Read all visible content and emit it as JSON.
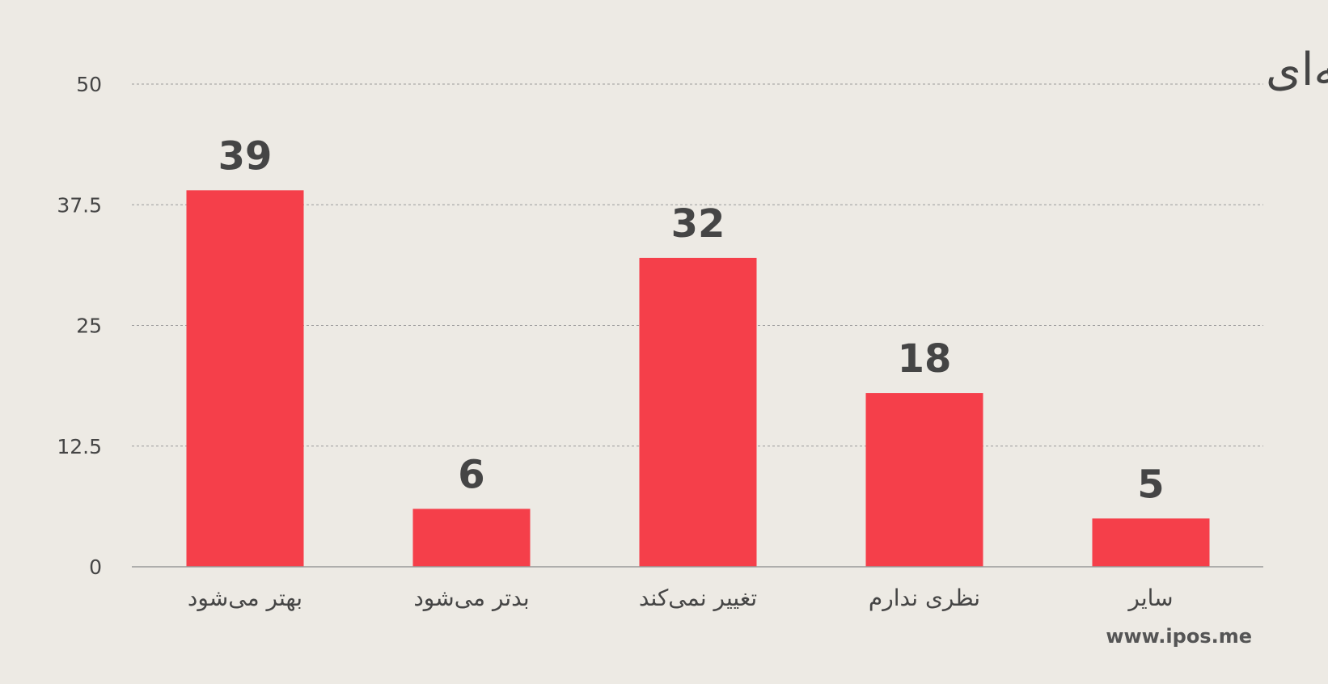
{
  "chart_data": {
    "type": "bar",
    "title": "رابطه با آمریکا بعد از توافق هسته‌ای",
    "categories": [
      "بهتر می‌شود",
      "بدتر می‌شود",
      "تغییر نمی‌کند",
      "نظری ندارم",
      "سایر"
    ],
    "values": [
      39,
      6,
      32,
      18,
      5
    ],
    "yticks": [
      "0",
      "12.5",
      "25",
      "37.5",
      "50"
    ],
    "ylim": [
      0,
      50
    ],
    "grid": true,
    "bar_color": "#F53F4A",
    "data_labels": [
      "39",
      "6",
      "32",
      "18",
      "5"
    ]
  },
  "watermark": "www.ipos.me"
}
